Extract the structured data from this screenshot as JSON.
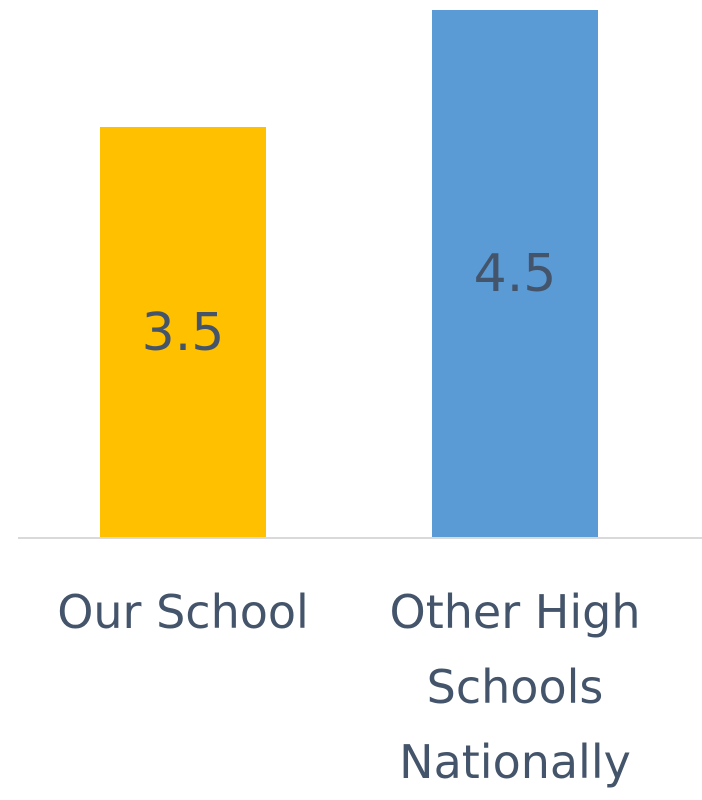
{
  "chart_data": {
    "type": "bar",
    "categories": [
      "Our School",
      "Other High Schools Nationally"
    ],
    "values": [
      3.5,
      4.5
    ],
    "colors": [
      "#ffc000",
      "#5b9bd5"
    ],
    "ylim": [
      0,
      4.5
    ]
  }
}
